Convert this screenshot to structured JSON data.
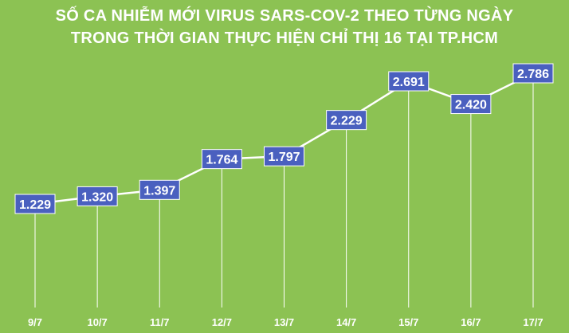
{
  "title_line1": "SỐ CA NHIỄM MỚI VIRUS SARS-COV-2 THEO TỪNG NGÀY",
  "title_line2": "TRONG THỜI GIAN THỰC HIỆN CHỈ THỊ 16 TẠI TP.HCM",
  "colors": {
    "background": "#8CC253",
    "line": "#ffffff",
    "label_fill": "#4A60BF",
    "label_text": "#ffffff",
    "axis_text": "#ffffff"
  },
  "chart_data": {
    "type": "line",
    "title": "SỐ CA NHIỄM MỚI VIRUS SARS-COV-2 THEO TỪNG NGÀY TRONG THỜI GIAN THỰC HIỆN CHỈ THỊ 16 TẠI TP.HCM",
    "categories": [
      "9/7",
      "10/7",
      "11/7",
      "12/7",
      "13/7",
      "14/7",
      "15/7",
      "16/7",
      "17/7"
    ],
    "values": [
      1229,
      1320,
      1397,
      1764,
      1797,
      2229,
      2691,
      2420,
      2786
    ],
    "data_labels": [
      "1.229",
      "1.320",
      "1.397",
      "1.764",
      "1.797",
      "2.229",
      "2.691",
      "2.420",
      "2.786"
    ],
    "grid": false,
    "drop_lines": true
  }
}
